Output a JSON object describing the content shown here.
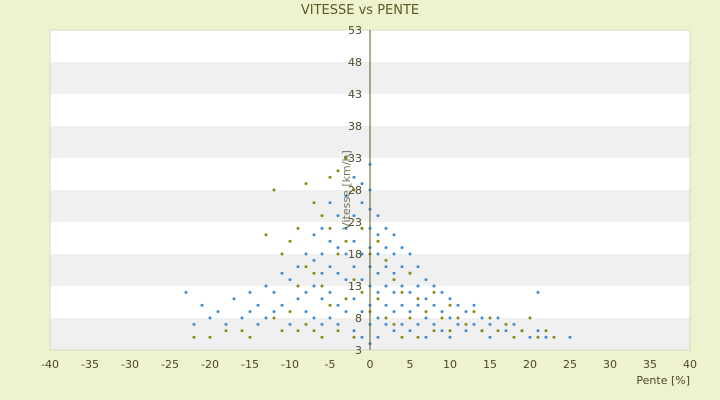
{
  "chart_data": {
    "type": "scatter",
    "title": "VITESSE vs PENTE",
    "xlabel": "Pente [%]",
    "ylabel": "Vitesse [km/h]",
    "xlim": [
      -40,
      40
    ],
    "ylim": [
      3,
      53
    ],
    "xticks": [
      "-40",
      "-35",
      "-30",
      "-25",
      "-20",
      "-15",
      "-10",
      "-5",
      "0",
      "5",
      "10",
      "15",
      "20",
      "25",
      "30",
      "35",
      "40"
    ],
    "yticks": [
      "3",
      "8",
      "13",
      "18",
      "23",
      "28",
      "33",
      "38",
      "43",
      "48",
      "53"
    ],
    "grid": "alternating horizontal bands",
    "colors": {
      "background": "#eef2cf",
      "band_light": "#ffffff",
      "band_dark": "#f0f0f0",
      "axis": "#5a5a22",
      "series_a": "#3a8ed6",
      "series_b": "#8a8a10"
    },
    "series": [
      {
        "marker": "blue-dot",
        "points": [
          [
            -23,
            12
          ],
          [
            -22,
            7
          ],
          [
            -21,
            10
          ],
          [
            -20,
            8
          ],
          [
            -19,
            9
          ],
          [
            -18,
            7
          ],
          [
            -17,
            11
          ],
          [
            -16,
            8
          ],
          [
            -15,
            12
          ],
          [
            -15,
            9
          ],
          [
            -14,
            10
          ],
          [
            -14,
            7
          ],
          [
            -13,
            13
          ],
          [
            -13,
            8
          ],
          [
            -12,
            12
          ],
          [
            -12,
            9
          ],
          [
            -11,
            15
          ],
          [
            -11,
            10
          ],
          [
            -10,
            14
          ],
          [
            -10,
            7
          ],
          [
            -9,
            16
          ],
          [
            -9,
            11
          ],
          [
            -8,
            18
          ],
          [
            -8,
            12
          ],
          [
            -8,
            9
          ],
          [
            -7,
            21
          ],
          [
            -7,
            17
          ],
          [
            -7,
            13
          ],
          [
            -7,
            8
          ],
          [
            -6,
            22
          ],
          [
            -6,
            18
          ],
          [
            -6,
            15
          ],
          [
            -6,
            11
          ],
          [
            -6,
            7
          ],
          [
            -5,
            26
          ],
          [
            -5,
            20
          ],
          [
            -5,
            16
          ],
          [
            -5,
            12
          ],
          [
            -5,
            8
          ],
          [
            -4,
            24
          ],
          [
            -4,
            19
          ],
          [
            -4,
            15
          ],
          [
            -4,
            10
          ],
          [
            -4,
            7
          ],
          [
            -3,
            27
          ],
          [
            -3,
            22
          ],
          [
            -3,
            18
          ],
          [
            -3,
            14
          ],
          [
            -3,
            9
          ],
          [
            -2,
            30
          ],
          [
            -2,
            24
          ],
          [
            -2,
            20
          ],
          [
            -2,
            16
          ],
          [
            -2,
            11
          ],
          [
            -2,
            6
          ],
          [
            -1,
            29
          ],
          [
            -1,
            26
          ],
          [
            -1,
            22
          ],
          [
            -1,
            18
          ],
          [
            -1,
            14
          ],
          [
            -1,
            9
          ],
          [
            -1,
            5
          ],
          [
            0,
            32
          ],
          [
            0,
            28
          ],
          [
            0,
            25
          ],
          [
            0,
            22
          ],
          [
            0,
            19
          ],
          [
            0,
            16
          ],
          [
            0,
            13
          ],
          [
            0,
            10
          ],
          [
            0,
            7
          ],
          [
            0,
            4
          ],
          [
            1,
            24
          ],
          [
            1,
            21
          ],
          [
            1,
            18
          ],
          [
            1,
            15
          ],
          [
            1,
            12
          ],
          [
            1,
            8
          ],
          [
            1,
            5
          ],
          [
            2,
            22
          ],
          [
            2,
            19
          ],
          [
            2,
            16
          ],
          [
            2,
            13
          ],
          [
            2,
            10
          ],
          [
            2,
            7
          ],
          [
            3,
            21
          ],
          [
            3,
            18
          ],
          [
            3,
            15
          ],
          [
            3,
            12
          ],
          [
            3,
            9
          ],
          [
            3,
            6
          ],
          [
            4,
            19
          ],
          [
            4,
            16
          ],
          [
            4,
            13
          ],
          [
            4,
            10
          ],
          [
            4,
            7
          ],
          [
            5,
            18
          ],
          [
            5,
            15
          ],
          [
            5,
            12
          ],
          [
            5,
            9
          ],
          [
            5,
            6
          ],
          [
            6,
            16
          ],
          [
            6,
            13
          ],
          [
            6,
            10
          ],
          [
            6,
            7
          ],
          [
            7,
            14
          ],
          [
            7,
            11
          ],
          [
            7,
            8
          ],
          [
            7,
            5
          ],
          [
            8,
            13
          ],
          [
            8,
            10
          ],
          [
            8,
            7
          ],
          [
            9,
            12
          ],
          [
            9,
            9
          ],
          [
            9,
            6
          ],
          [
            10,
            11
          ],
          [
            10,
            8
          ],
          [
            10,
            5
          ],
          [
            11,
            10
          ],
          [
            11,
            7
          ],
          [
            12,
            9
          ],
          [
            12,
            6
          ],
          [
            13,
            10
          ],
          [
            13,
            7
          ],
          [
            14,
            8
          ],
          [
            14,
            6
          ],
          [
            15,
            7
          ],
          [
            15,
            5
          ],
          [
            16,
            8
          ],
          [
            17,
            6
          ],
          [
            18,
            7
          ],
          [
            19,
            6
          ],
          [
            20,
            5
          ],
          [
            21,
            12
          ],
          [
            21,
            6
          ],
          [
            22,
            5
          ],
          [
            25,
            5
          ]
        ]
      },
      {
        "marker": "olive-dot",
        "points": [
          [
            -22,
            5
          ],
          [
            -20,
            5
          ],
          [
            -18,
            6
          ],
          [
            -16,
            6
          ],
          [
            -15,
            5
          ],
          [
            -13,
            21
          ],
          [
            -12,
            28
          ],
          [
            -12,
            8
          ],
          [
            -11,
            18
          ],
          [
            -11,
            6
          ],
          [
            -10,
            20
          ],
          [
            -10,
            9
          ],
          [
            -9,
            22
          ],
          [
            -9,
            13
          ],
          [
            -9,
            6
          ],
          [
            -8,
            29
          ],
          [
            -8,
            16
          ],
          [
            -8,
            7
          ],
          [
            -7,
            26
          ],
          [
            -7,
            15
          ],
          [
            -7,
            6
          ],
          [
            -6,
            24
          ],
          [
            -6,
            13
          ],
          [
            -6,
            5
          ],
          [
            -5,
            30
          ],
          [
            -5,
            22
          ],
          [
            -5,
            10
          ],
          [
            -4,
            31
          ],
          [
            -4,
            18
          ],
          [
            -4,
            6
          ],
          [
            -3,
            33
          ],
          [
            -3,
            20
          ],
          [
            -3,
            11
          ],
          [
            -2,
            28
          ],
          [
            -2,
            14
          ],
          [
            -2,
            5
          ],
          [
            -1,
            22
          ],
          [
            -1,
            12
          ],
          [
            0,
            18
          ],
          [
            0,
            9
          ],
          [
            1,
            20
          ],
          [
            1,
            11
          ],
          [
            2,
            17
          ],
          [
            2,
            8
          ],
          [
            3,
            14
          ],
          [
            3,
            7
          ],
          [
            4,
            12
          ],
          [
            4,
            5
          ],
          [
            5,
            15
          ],
          [
            5,
            8
          ],
          [
            6,
            11
          ],
          [
            6,
            5
          ],
          [
            7,
            9
          ],
          [
            8,
            12
          ],
          [
            8,
            6
          ],
          [
            9,
            8
          ],
          [
            10,
            10
          ],
          [
            10,
            6
          ],
          [
            11,
            8
          ],
          [
            12,
            7
          ],
          [
            13,
            9
          ],
          [
            14,
            6
          ],
          [
            15,
            8
          ],
          [
            16,
            6
          ],
          [
            17,
            7
          ],
          [
            18,
            5
          ],
          [
            19,
            6
          ],
          [
            20,
            8
          ],
          [
            21,
            5
          ],
          [
            22,
            6
          ],
          [
            23,
            5
          ]
        ]
      }
    ]
  }
}
